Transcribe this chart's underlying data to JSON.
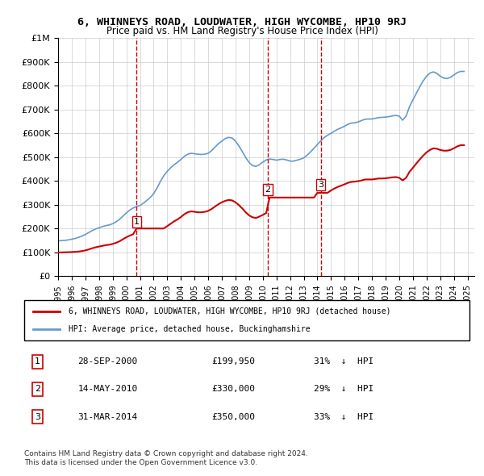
{
  "title": "6, WHINNEYS ROAD, LOUDWATER, HIGH WYCOMBE, HP10 9RJ",
  "subtitle": "Price paid vs. HM Land Registry's House Price Index (HPI)",
  "ylabel": "",
  "xlabel": "",
  "ylim": [
    0,
    1000000
  ],
  "yticks": [
    0,
    100000,
    200000,
    300000,
    400000,
    500000,
    600000,
    700000,
    800000,
    900000,
    1000000
  ],
  "ytick_labels": [
    "£0",
    "£100K",
    "£200K",
    "£300K",
    "£400K",
    "£500K",
    "£600K",
    "£700K",
    "£800K",
    "£900K",
    "£1M"
  ],
  "xlim_start": 1995.0,
  "xlim_end": 2025.5,
  "sales": [
    {
      "date_label": "28-SEP-2000",
      "year": 2000.75,
      "price": 199950,
      "number": 1,
      "pct": "31%",
      "direction": "↓"
    },
    {
      "date_label": "14-MAY-2010",
      "year": 2010.37,
      "price": 330000,
      "number": 2,
      "pct": "29%",
      "direction": "↓"
    },
    {
      "date_label": "31-MAR-2014",
      "year": 2014.25,
      "price": 350000,
      "number": 3,
      "pct": "33%",
      "direction": "↓"
    }
  ],
  "property_line_color": "#cc0000",
  "hpi_line_color": "#6699cc",
  "vline_color": "#cc0000",
  "grid_color": "#cccccc",
  "background_color": "#ffffff",
  "legend_property": "6, WHINNEYS ROAD, LOUDWATER, HIGH WYCOMBE, HP10 9RJ (detached house)",
  "legend_hpi": "HPI: Average price, detached house, Buckinghamshire",
  "footnote1": "Contains HM Land Registry data © Crown copyright and database right 2024.",
  "footnote2": "This data is licensed under the Open Government Licence v3.0.",
  "hpi_data": {
    "years": [
      1995.0,
      1995.25,
      1995.5,
      1995.75,
      1996.0,
      1996.25,
      1996.5,
      1996.75,
      1997.0,
      1997.25,
      1997.5,
      1997.75,
      1998.0,
      1998.25,
      1998.5,
      1998.75,
      1999.0,
      1999.25,
      1999.5,
      1999.75,
      2000.0,
      2000.25,
      2000.5,
      2000.75,
      2001.0,
      2001.25,
      2001.5,
      2001.75,
      2002.0,
      2002.25,
      2002.5,
      2002.75,
      2003.0,
      2003.25,
      2003.5,
      2003.75,
      2004.0,
      2004.25,
      2004.5,
      2004.75,
      2005.0,
      2005.25,
      2005.5,
      2005.75,
      2006.0,
      2006.25,
      2006.5,
      2006.75,
      2007.0,
      2007.25,
      2007.5,
      2007.75,
      2008.0,
      2008.25,
      2008.5,
      2008.75,
      2009.0,
      2009.25,
      2009.5,
      2009.75,
      2010.0,
      2010.25,
      2010.5,
      2010.75,
      2011.0,
      2011.25,
      2011.5,
      2011.75,
      2012.0,
      2012.25,
      2012.5,
      2012.75,
      2013.0,
      2013.25,
      2013.5,
      2013.75,
      2014.0,
      2014.25,
      2014.5,
      2014.75,
      2015.0,
      2015.25,
      2015.5,
      2015.75,
      2016.0,
      2016.25,
      2016.5,
      2016.75,
      2017.0,
      2017.25,
      2017.5,
      2017.75,
      2018.0,
      2018.25,
      2018.5,
      2018.75,
      2019.0,
      2019.25,
      2019.5,
      2019.75,
      2020.0,
      2020.25,
      2020.5,
      2020.75,
      2021.0,
      2021.25,
      2021.5,
      2021.75,
      2022.0,
      2022.25,
      2022.5,
      2022.75,
      2023.0,
      2023.25,
      2023.5,
      2023.75,
      2024.0,
      2024.25,
      2024.5,
      2024.75
    ],
    "values": [
      148000,
      149000,
      150000,
      152000,
      155000,
      158000,
      163000,
      168000,
      175000,
      183000,
      191000,
      198000,
      203000,
      208000,
      212000,
      215000,
      220000,
      228000,
      238000,
      252000,
      265000,
      277000,
      286000,
      292000,
      297000,
      306000,
      318000,
      330000,
      346000,
      370000,
      398000,
      422000,
      440000,
      455000,
      468000,
      478000,
      490000,
      503000,
      512000,
      516000,
      514000,
      512000,
      511000,
      512000,
      516000,
      527000,
      542000,
      556000,
      567000,
      578000,
      583000,
      580000,
      567000,
      547000,
      523000,
      498000,
      477000,
      464000,
      461000,
      468000,
      479000,
      488000,
      492000,
      490000,
      487000,
      490000,
      491000,
      488000,
      483000,
      483000,
      487000,
      491000,
      497000,
      508000,
      522000,
      537000,
      553000,
      568000,
      582000,
      592000,
      600000,
      609000,
      617000,
      623000,
      630000,
      638000,
      643000,
      644000,
      648000,
      654000,
      659000,
      660000,
      660000,
      663000,
      666000,
      667000,
      668000,
      670000,
      673000,
      675000,
      672000,
      655000,
      672000,
      712000,
      740000,
      768000,
      795000,
      820000,
      840000,
      853000,
      858000,
      852000,
      840000,
      832000,
      830000,
      835000,
      845000,
      855000,
      860000,
      860000
    ]
  },
  "property_data": {
    "years": [
      1995.0,
      1995.25,
      1995.5,
      1995.75,
      1996.0,
      1996.25,
      1996.5,
      1996.75,
      1997.0,
      1997.25,
      1997.5,
      1997.75,
      1998.0,
      1998.25,
      1998.5,
      1998.75,
      1999.0,
      1999.25,
      1999.5,
      1999.75,
      2000.0,
      2000.25,
      2000.5,
      2000.75,
      2001.0,
      2001.25,
      2001.5,
      2001.75,
      2002.0,
      2002.25,
      2002.5,
      2002.75,
      2003.0,
      2003.25,
      2003.5,
      2003.75,
      2004.0,
      2004.25,
      2004.5,
      2004.75,
      2005.0,
      2005.25,
      2005.5,
      2005.75,
      2006.0,
      2006.25,
      2006.5,
      2006.75,
      2007.0,
      2007.25,
      2007.5,
      2007.75,
      2008.0,
      2008.25,
      2008.5,
      2008.75,
      2009.0,
      2009.25,
      2009.5,
      2009.75,
      2010.0,
      2010.25,
      2010.5,
      2010.75,
      2011.0,
      2011.25,
      2011.5,
      2011.75,
      2012.0,
      2012.25,
      2012.5,
      2012.75,
      2013.0,
      2013.25,
      2013.5,
      2013.75,
      2014.0,
      2014.25,
      2014.5,
      2014.75,
      2015.0,
      2015.25,
      2015.5,
      2015.75,
      2016.0,
      2016.25,
      2016.5,
      2016.75,
      2017.0,
      2017.25,
      2017.5,
      2017.75,
      2018.0,
      2018.25,
      2018.5,
      2018.75,
      2019.0,
      2019.25,
      2019.5,
      2019.75,
      2020.0,
      2020.25,
      2020.5,
      2020.75,
      2021.0,
      2021.25,
      2021.5,
      2021.75,
      2022.0,
      2022.25,
      2022.5,
      2022.75,
      2023.0,
      2023.25,
      2023.5,
      2023.75,
      2024.0,
      2024.25,
      2024.5,
      2024.75
    ],
    "values": [
      99000,
      99500,
      100000,
      100500,
      101000,
      102000,
      103000,
      105000,
      108000,
      112000,
      117000,
      121000,
      124000,
      127000,
      130000,
      132000,
      135000,
      140000,
      146000,
      155000,
      163000,
      170000,
      176000,
      199950,
      199950,
      199950,
      199950,
      199950,
      199950,
      199950,
      199950,
      199950,
      210000,
      220000,
      230000,
      238000,
      248000,
      260000,
      268000,
      272000,
      270000,
      268000,
      268000,
      270000,
      274000,
      282000,
      292000,
      302000,
      310000,
      316000,
      320000,
      318000,
      310000,
      298000,
      284000,
      268000,
      255000,
      247000,
      244000,
      250000,
      257000,
      265000,
      330000,
      330000,
      330000,
      330000,
      330000,
      330000,
      330000,
      330000,
      330000,
      330000,
      330000,
      330000,
      330000,
      330000,
      350000,
      350000,
      350000,
      350000,
      360000,
      368000,
      375000,
      380000,
      386000,
      392000,
      396000,
      397000,
      399000,
      402000,
      406000,
      406000,
      406000,
      408000,
      410000,
      410000,
      411000,
      413000,
      415000,
      416000,
      413000,
      402000,
      413000,
      438000,
      455000,
      473000,
      490000,
      506000,
      520000,
      530000,
      537000,
      535000,
      530000,
      527000,
      527000,
      530000,
      537000,
      545000,
      550000,
      550000
    ]
  },
  "xtick_years": [
    1995,
    1996,
    1997,
    1998,
    1999,
    2000,
    2001,
    2002,
    2003,
    2004,
    2005,
    2006,
    2007,
    2008,
    2009,
    2010,
    2011,
    2012,
    2013,
    2014,
    2015,
    2016,
    2017,
    2018,
    2019,
    2020,
    2021,
    2022,
    2023,
    2024,
    2025
  ]
}
